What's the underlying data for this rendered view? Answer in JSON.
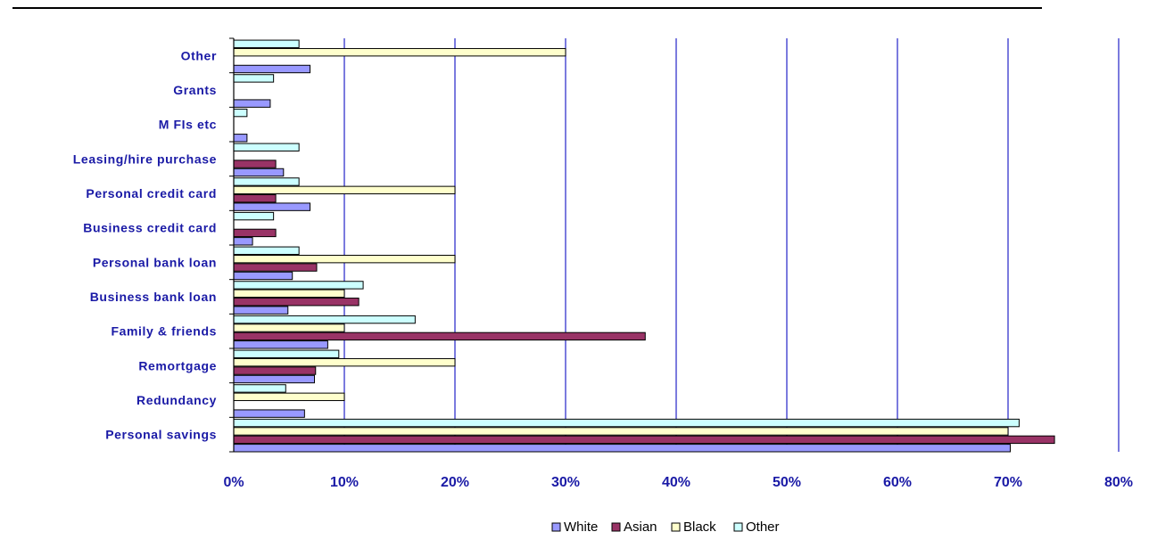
{
  "chart_data": {
    "type": "bar",
    "orientation": "horizontal",
    "categories": [
      "Personal savings",
      "Redundancy",
      "Remortgage",
      "Family & friends",
      "Business bank loan",
      "Personal bank loan",
      "Business credit card",
      "Personal credit card",
      "Leasing/hire purchase",
      "M FIs etc",
      "Grants",
      "Other"
    ],
    "series": [
      {
        "name": "White",
        "color": "#9999ff",
        "values": [
          70.2,
          6.4,
          7.3,
          8.5,
          4.9,
          5.3,
          1.7,
          6.9,
          4.5,
          1.2,
          3.3,
          6.9
        ]
      },
      {
        "name": "Asian",
        "color": "#993366",
        "values": [
          74.2,
          0,
          7.4,
          37.2,
          11.3,
          7.5,
          3.8,
          3.8,
          3.8,
          0,
          0,
          0
        ]
      },
      {
        "name": "Black",
        "color": "#ffffcc",
        "values": [
          70.0,
          10.0,
          20.0,
          10.0,
          10.0,
          20.0,
          0,
          20.0,
          0,
          0,
          0,
          30.0
        ]
      },
      {
        "name": "Other",
        "color": "#ccffff",
        "values": [
          71.0,
          4.7,
          9.5,
          16.4,
          11.7,
          5.9,
          3.6,
          5.9,
          5.9,
          1.2,
          3.6,
          5.9
        ]
      }
    ],
    "xlim": [
      0,
      80
    ],
    "xticks": [
      "0%",
      "10%",
      "20%",
      "30%",
      "40%",
      "50%",
      "60%",
      "70%",
      "80%"
    ],
    "grid": true,
    "legend": "bottom"
  }
}
